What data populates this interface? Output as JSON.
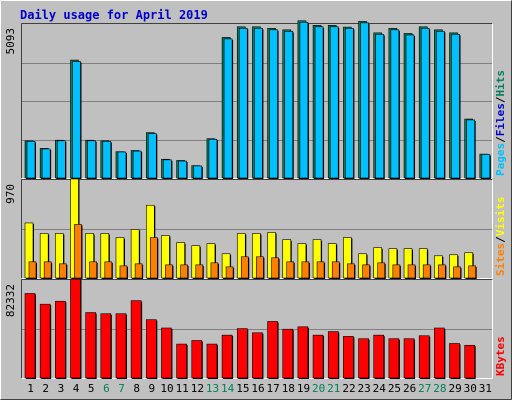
{
  "chart_data": {
    "title": "Daily usage for April 2019",
    "type": "bar",
    "days": [
      "1",
      "2",
      "3",
      "4",
      "5",
      "6",
      "7",
      "8",
      "9",
      "10",
      "11",
      "12",
      "13",
      "14",
      "15",
      "16",
      "17",
      "18",
      "19",
      "20",
      "21",
      "22",
      "23",
      "24",
      "25",
      "26",
      "27",
      "28",
      "29",
      "30",
      "31"
    ],
    "weekend_days": [
      "6",
      "7",
      "13",
      "14",
      "20",
      "21",
      "27",
      "28"
    ],
    "colors": {
      "background": "#C0C0C0",
      "page_bg": "#FFFFFF",
      "title": "#0000CC",
      "hits": "#00805C",
      "files": "#0000CC",
      "pages": "#00C0FF",
      "visits": "#FFFF00",
      "sites": "#FF8000",
      "kbytes": "#FF0000",
      "grid": "#808080",
      "weekday_label": "#000000",
      "weekend_label": "#00805C"
    },
    "panels": [
      {
        "name": "hits-panel",
        "ymax_label": "5093",
        "ymax": 5093,
        "legend": [
          "Pages",
          "Files",
          "Hits"
        ],
        "series": [
          {
            "name": "Hits",
            "values": [
              1230,
              980,
              1250,
              3900,
              1250,
              1230,
              870,
              910,
              1500,
              620,
              580,
              410,
              1300,
              4650,
              5000,
              5000,
              4950,
              4900,
              5200,
              5050,
              5050,
              4990,
              5180,
              4800,
              4950,
              4780,
              5000,
              4900,
              4800,
              1950,
              790
            ]
          },
          {
            "name": "Files",
            "values": [
              1210,
              960,
              1230,
              3850,
              1230,
              1210,
              860,
              890,
              1470,
              600,
              560,
              400,
              1280,
              4600,
              4950,
              4950,
              4900,
              4850,
              5150,
              5000,
              5000,
              4950,
              5130,
              4750,
              4900,
              4730,
              4950,
              4850,
              4750,
              1920,
              780
            ]
          }
        ]
      },
      {
        "name": "visits-panel",
        "ymax_label": "970",
        "ymax": 970,
        "legend": [
          "Sites",
          "Visits"
        ],
        "series": [
          {
            "name": "Visits",
            "values": [
              545,
              440,
              440,
              980,
              440,
              440,
              400,
              480,
              720,
              420,
              350,
              320,
              340,
              240,
              440,
              440,
              450,
              380,
              340,
              380,
              340,
              400,
              240,
              300,
              290,
              290,
              290,
              220,
              230,
              250,
              0
            ]
          },
          {
            "name": "Sites",
            "values": [
              160,
              160,
              140,
              530,
              160,
              160,
              120,
              140,
              400,
              130,
              130,
              130,
              150,
              110,
              210,
              210,
              200,
              160,
              160,
              160,
              160,
              140,
              130,
              150,
              130,
              130,
              130,
              130,
              110,
              120,
              0
            ]
          }
        ]
      },
      {
        "name": "kbytes-panel",
        "ymax_label": "82332",
        "ymax": 82332,
        "legend": [
          "KBytes"
        ],
        "series": [
          {
            "name": "KBytes",
            "values": [
              71000,
              62000,
              64500,
              83000,
              55000,
              54000,
              54000,
              65000,
              49000,
              42000,
              28500,
              31500,
              28500,
              36000,
              41500,
              38000,
              47500,
              41000,
              43000,
              36000,
              39000,
              35000,
              33000,
              36000,
              33000,
              33000,
              35500,
              42000,
              29000,
              27500,
              0
            ]
          }
        ]
      }
    ]
  }
}
